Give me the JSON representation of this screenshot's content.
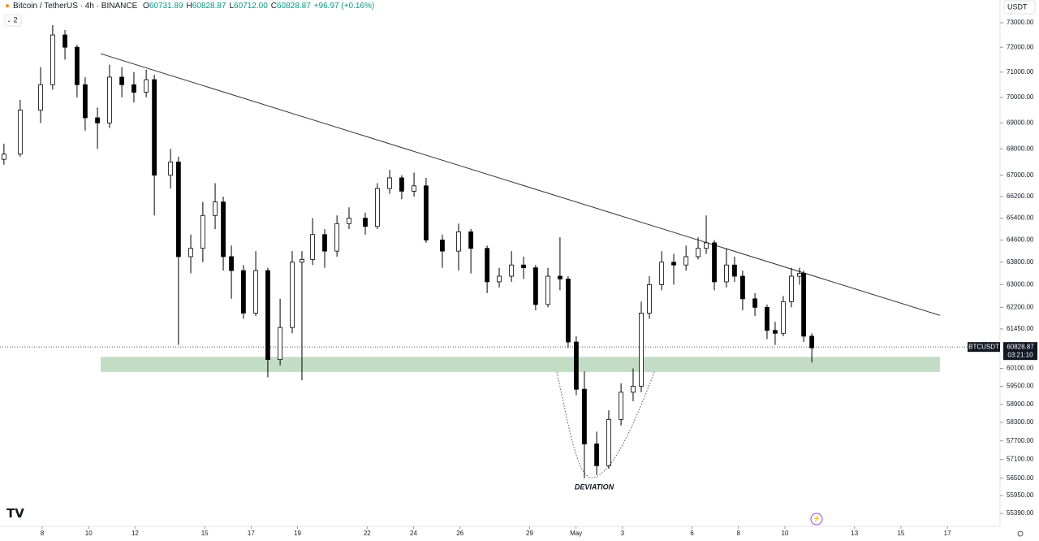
{
  "header": {
    "symbol": "Bitcoin / TetherUS · 4h · BINANCE",
    "ohlc": [
      {
        "key": "O",
        "value": "60731.89"
      },
      {
        "key": "H",
        "value": "60828.87"
      },
      {
        "key": "L",
        "value": "60712.00"
      },
      {
        "key": "C",
        "value": "60828.87"
      }
    ],
    "change": "+96.97 (+0.16%)",
    "indicator_count": "2",
    "currency": "USDT"
  },
  "chart_data": {
    "type": "candlestick",
    "log_scale": true,
    "up_color": "#ffffff",
    "down_color": "#000000",
    "wick_color": "#000000",
    "x": [
      6.35,
      7.05,
      7.93,
      8.45,
      8.98,
      9.5,
      9.85,
      10.38,
      10.9,
      11.43,
      11.95,
      12.48,
      12.83,
      13.53,
      13.87,
      14.4,
      14.92,
      15.45,
      15.8,
      16.15,
      16.67,
      17.2,
      17.72,
      18.25,
      18.77,
      19.19,
      19.65,
      20.17,
      20.7,
      21.22,
      21.92,
      22.44,
      22.97,
      23.49,
      24.02,
      24.54,
      25.24,
      25.94,
      26.47,
      27.17,
      27.69,
      28.22,
      28.74,
      29.26,
      29.79,
      30.31,
      30.66,
      31.01,
      31.36,
      31.89,
      32.41,
      32.94,
      33.46,
      33.81,
      34.16,
      34.69,
      35.21,
      35.74,
      36.26,
      36.61,
      36.96,
      37.48,
      37.83,
      38.18,
      38.71,
      39.23,
      39.58,
      39.93,
      40.28,
      40.63,
      40.81,
      41.16
    ],
    "open": [
      67600,
      67800,
      69500,
      70500,
      72500,
      72000,
      70500,
      69200,
      69000,
      70800,
      70500,
      70200,
      70700,
      67000,
      67500,
      64000,
      64300,
      65500,
      66000,
      64000,
      63500,
      62000,
      63500,
      60400,
      61500,
      63800,
      63900,
      64800,
      64200,
      65200,
      65400,
      65100,
      66500,
      66900,
      66400,
      66600,
      64600,
      64200,
      64900,
      64300,
      63100,
      63300,
      63700,
      63600,
      62300,
      63300,
      63200,
      61000,
      59400,
      57600,
      56900,
      58400,
      59300,
      59500,
      62000,
      63000,
      63800,
      63700,
      64000,
      64300,
      64500,
      63100,
      63700,
      63300,
      62500,
      62200,
      61400,
      61300,
      62400,
      63300,
      63400,
      61200
    ],
    "high": [
      68200,
      69900,
      71200,
      72900,
      72700,
      72100,
      70800,
      69600,
      71300,
      71200,
      71000,
      71100,
      70900,
      68000,
      67700,
      64800,
      66000,
      66700,
      66200,
      64400,
      63700,
      64200,
      63600,
      62500,
      64200,
      64200,
      65400,
      65000,
      65500,
      65800,
      65600,
      66700,
      67200,
      67000,
      67100,
      66900,
      64800,
      65200,
      65000,
      64400,
      63600,
      64200,
      64000,
      63700,
      63600,
      64700,
      63300,
      61200,
      60000,
      58000,
      58700,
      59600,
      60100,
      62400,
      63300,
      64200,
      64100,
      64400,
      64700,
      65500,
      64600,
      64300,
      64000,
      63500,
      62700,
      62300,
      61700,
      62600,
      63600,
      63600,
      63500,
      61300
    ],
    "low": [
      67400,
      67700,
      69000,
      70300,
      71500,
      70000,
      68700,
      68000,
      68800,
      70000,
      69800,
      70000,
      65500,
      66500,
      60900,
      63400,
      63800,
      65000,
      63500,
      62500,
      61800,
      61900,
      59800,
      60200,
      61300,
      59700,
      63700,
      63600,
      64000,
      65000,
      64800,
      65000,
      66300,
      66100,
      66200,
      64500,
      63600,
      63500,
      63400,
      62700,
      62900,
      63100,
      63200,
      62100,
      62200,
      62800,
      60800,
      59200,
      56500,
      56600,
      56800,
      58200,
      59000,
      59300,
      61800,
      62800,
      63000,
      63500,
      63900,
      64100,
      62800,
      62900,
      63100,
      62100,
      61900,
      61100,
      60900,
      61200,
      62200,
      63000,
      61000,
      60300
    ],
    "close": [
      67800,
      69500,
      70500,
      72500,
      72000,
      70500,
      69200,
      69000,
      70800,
      70500,
      70200,
      70700,
      67000,
      67500,
      64000,
      64300,
      65500,
      66000,
      64000,
      63500,
      62000,
      63500,
      60400,
      61500,
      63800,
      63900,
      64800,
      64200,
      65200,
      65400,
      65100,
      66500,
      66900,
      66400,
      66600,
      64600,
      64200,
      64900,
      64300,
      63100,
      63300,
      63700,
      63600,
      62300,
      63300,
      63200,
      61000,
      59400,
      57600,
      56900,
      58400,
      59300,
      59500,
      62000,
      63000,
      63800,
      63700,
      64000,
      64300,
      64500,
      63100,
      63700,
      63300,
      62500,
      62200,
      61400,
      61300,
      62400,
      63300,
      63400,
      61200,
      60800
    ],
    "xlim": [
      6.18,
      49.27
    ],
    "ylim": [
      54990,
      73940
    ],
    "xticks": [
      8,
      10,
      12,
      15,
      17,
      19,
      22,
      24,
      26,
      29,
      {
        "value": 31,
        "label": "May"
      },
      {
        "value": 33,
        "label": "3"
      },
      {
        "value": 36,
        "label": "6"
      },
      {
        "value": 38,
        "label": "8"
      },
      {
        "value": 40,
        "label": "10"
      },
      {
        "value": 43,
        "label": "13"
      },
      {
        "value": 45,
        "label": "15"
      },
      {
        "value": 47,
        "label": "17"
      }
    ],
    "yticks": [
      {
        "value": 73000,
        "label": "73000.00"
      },
      {
        "value": 72000,
        "label": "72000.00"
      },
      {
        "value": 71000,
        "label": "71000.00"
      },
      {
        "value": 70000,
        "label": "70000.00"
      },
      {
        "value": 69000,
        "label": "69000.00"
      },
      {
        "value": 68000,
        "label": "68000.00"
      },
      {
        "value": 67000,
        "label": "67000.00"
      },
      {
        "value": 66200,
        "label": "66200.00"
      },
      {
        "value": 65400,
        "label": "65400.00"
      },
      {
        "value": 64600,
        "label": "64600.00"
      },
      {
        "value": 63800,
        "label": "63800.00"
      },
      {
        "value": 63000,
        "label": "63000.00"
      },
      {
        "value": 62200,
        "label": "62200.00"
      },
      {
        "value": 61450,
        "label": "61450.00"
      },
      {
        "value": 60100,
        "label": "60100.00"
      },
      {
        "value": 59500,
        "label": "59500.00"
      },
      {
        "value": 58900,
        "label": "58900.00"
      },
      {
        "value": 58300,
        "label": "58300.00"
      },
      {
        "value": 57700,
        "label": "57700.00"
      },
      {
        "value": 57100,
        "label": "57100.00"
      },
      {
        "value": 56500,
        "label": "56500.00"
      },
      {
        "value": 55950,
        "label": "55950.00"
      },
      {
        "value": 55390,
        "label": "55390.00"
      }
    ],
    "trendline": {
      "x": [
        10.52,
        46.68
      ],
      "y": [
        71740,
        61920
      ],
      "color": "#333333"
    },
    "zone": {
      "x": [
        10.52,
        46.68
      ],
      "y": [
        59980,
        60490
      ],
      "color": "#c3dcc4"
    },
    "annotation": "DEVIATION",
    "last_price": {
      "symbol": "BTCUSDT",
      "value": 60828.87,
      "countdown": "03:21:10"
    }
  }
}
